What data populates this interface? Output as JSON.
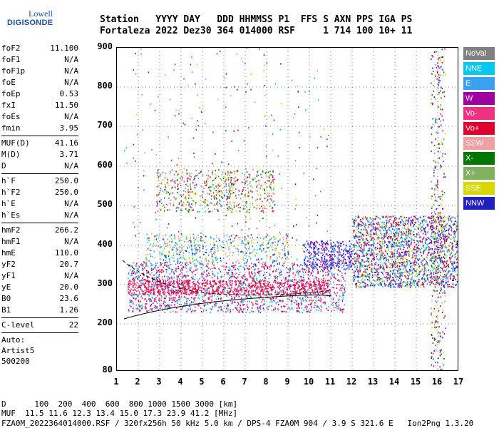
{
  "logo": {
    "line1": "Lowell",
    "line2": "DIGISONDE"
  },
  "header": {
    "row1": "Station   YYYY DAY   DDD HHMMSS P1  FFS S AXN PPS IGA PS",
    "row2": "Fortaleza 2022 Dez30 364 014000 RSF     1 714 100 10+ 11"
  },
  "params": [
    {
      "k": "foF2",
      "v": "11.100"
    },
    {
      "k": "foF1",
      "v": "N/A"
    },
    {
      "k": "foF1p",
      "v": "N/A"
    },
    {
      "k": "foE",
      "v": "N/A"
    },
    {
      "k": "foEp",
      "v": "0.53"
    },
    {
      "k": "fxI",
      "v": "11.50"
    },
    {
      "k": "foEs",
      "v": "N/A"
    },
    {
      "k": "fmin",
      "v": "3.95"
    },
    {
      "k": "MUF(D)",
      "v": "41.16"
    },
    {
      "k": "M(D)",
      "v": "3.71"
    },
    {
      "k": "D",
      "v": "N/A"
    },
    {
      "k": "h`F",
      "v": "250.0"
    },
    {
      "k": "h`F2",
      "v": "250.0"
    },
    {
      "k": "h`E",
      "v": "N/A"
    },
    {
      "k": "h`Es",
      "v": "N/A"
    },
    {
      "k": "hmF2",
      "v": "266.2"
    },
    {
      "k": "hmF1",
      "v": "N/A"
    },
    {
      "k": "hmE",
      "v": "110.0"
    },
    {
      "k": "yF2",
      "v": "20.7"
    },
    {
      "k": "yF1",
      "v": "N/A"
    },
    {
      "k": "yE",
      "v": "20.0"
    },
    {
      "k": "B0",
      "v": "23.6"
    },
    {
      "k": "B1",
      "v": "1.26"
    },
    {
      "k": "C-level",
      "v": "22"
    }
  ],
  "auto": {
    "l1": "Auto:",
    "l2": "Artist5",
    "l3": "500200"
  },
  "y_ticks": [
    "900",
    "800",
    "700",
    "600",
    "500",
    "400",
    "300",
    "200",
    "80"
  ],
  "x_ticks": [
    "1",
    "2",
    "3",
    "4",
    "5",
    "6",
    "7",
    "8",
    "9",
    "10",
    "11",
    "12",
    "13",
    "14",
    "15",
    "16",
    "17"
  ],
  "legend": [
    {
      "label": "NoVal",
      "color": "#808080"
    },
    {
      "label": "NNE",
      "color": "#00c8f0"
    },
    {
      "label": "E",
      "color": "#3aa0f0"
    },
    {
      "label": "W",
      "color": "#a000a0"
    },
    {
      "label": "Vo-",
      "color": "#f03080"
    },
    {
      "label": "Vo+",
      "color": "#e00030"
    },
    {
      "label": "SSW",
      "color": "#f0a0a0"
    },
    {
      "label": "X-",
      "color": "#007800"
    },
    {
      "label": "X+",
      "color": "#80b060"
    },
    {
      "label": "SSE",
      "color": "#d8d800"
    },
    {
      "label": "NNW",
      "color": "#2020c0"
    }
  ],
  "footer": {
    "l1": "D      100  200  400  600  800 1000 1500 3000 [km]",
    "l2": "MUF  11.5 11.6 12.3 13.4 15.0 17.3 23.9 41.2 [MHz]",
    "l3": "FZA0M_2022364014000.RSF / 320fx256h 50 kHz 5.0 km / DPS-4 FZA0M 904 / 3.9 S 321.6 E   Ion2Png 1.3.20"
  }
}
